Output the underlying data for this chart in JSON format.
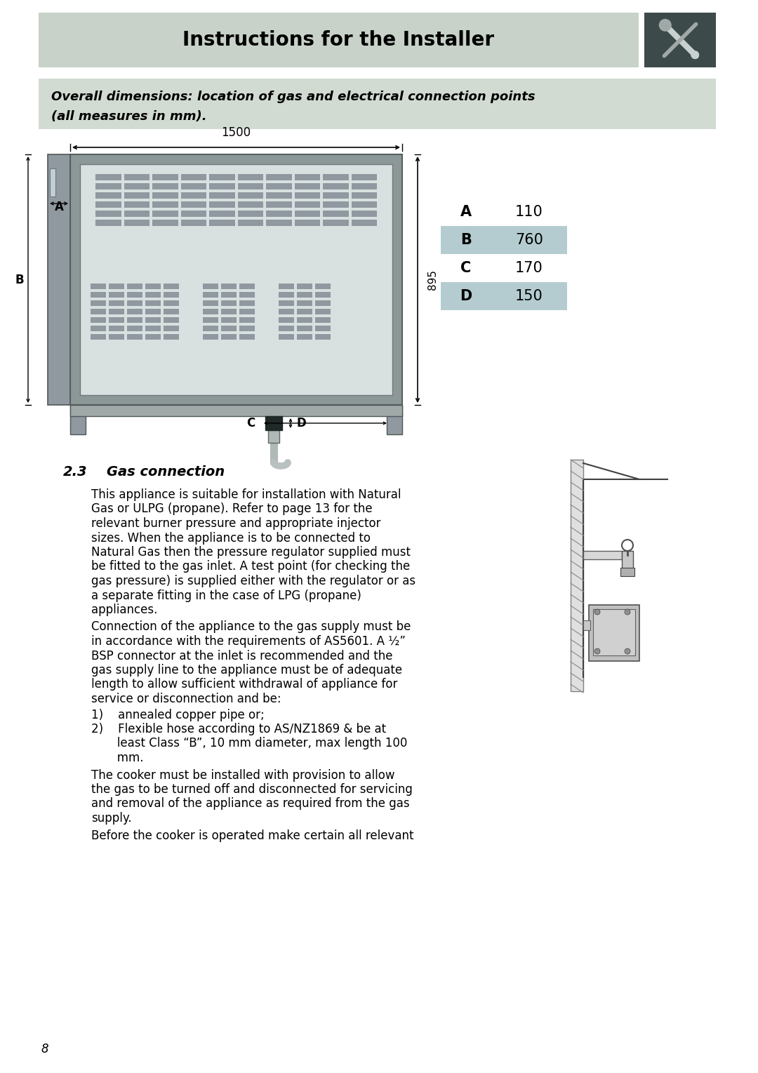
{
  "page_bg": "#ffffff",
  "header_bg": "#c8d2c8",
  "header_text": "Instructions for the Installer",
  "header_text_color": "#000000",
  "icon_bg": "#3c4a4a",
  "subtitle_bg": "#d2dbd2",
  "subtitle_line1": "Overall dimensions: location of gas and electrical connection points",
  "subtitle_line2": "(all measures in mm).",
  "dim_label_1500": "1500",
  "dim_label_895": "895",
  "dim_A": "A",
  "dim_B": "B",
  "dim_C": "C",
  "dim_D": "D",
  "val_A": "110",
  "val_B": "760",
  "val_C": "170",
  "val_D": "150",
  "tbl_highlight": "#b4ccd0",
  "tbl_plain": "#ffffff",
  "section_title_num": "2.3",
  "section_title_name": "Gas connection",
  "para1_lines": [
    "This appliance is suitable for installation with Natural",
    "Gas or ULPG (propane). Refer to page 13 for the",
    "relevant burner pressure and appropriate injector",
    "sizes. When the appliance is to be connected to",
    "Natural Gas then the pressure regulator supplied must",
    "be fitted to the gas inlet. A test point (for checking the",
    "gas pressure) is supplied either with the regulator or as",
    "a separate fitting in the case of LPG (propane)",
    "appliances."
  ],
  "para2_lines": [
    "Connection of the appliance to the gas supply must be",
    "in accordance with the requirements of AS5601. A ½”",
    "BSP connector at the inlet is recommended and the",
    "gas supply line to the appliance must be of adequate",
    "length to allow sufficient withdrawal of appliance for",
    "service or disconnection and be:"
  ],
  "list1": "1)    annealed copper pipe or;",
  "list2a": "2)    Flexible hose according to AS/NZ1869 & be at",
  "list2b": "       least Class “B”, 10 mm diameter, max length 100",
  "list2c": "       mm.",
  "para3_lines": [
    "The cooker must be installed with provision to allow",
    "the gas to be turned off and disconnected for servicing",
    "and removal of the appliance as required from the gas",
    "supply."
  ],
  "para4": "Before the cooker is operated make certain all relevant",
  "page_num": "8"
}
